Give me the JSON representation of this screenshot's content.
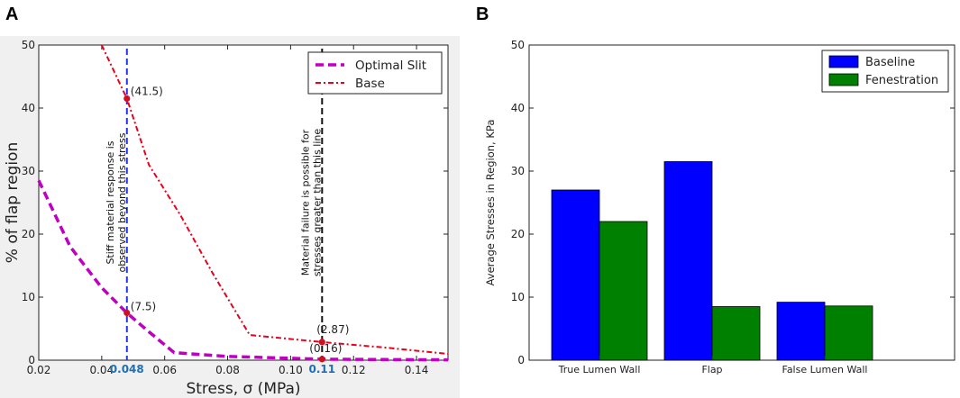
{
  "panel_a_label": "A",
  "panel_b_label": "B",
  "chart_data": [
    {
      "type": "line",
      "panel": "A",
      "xlabel": "Stress, σ (MPa)",
      "ylabel": "% of flap region",
      "xlim": [
        0.02,
        0.15
      ],
      "ylim": [
        0,
        50
      ],
      "xticks": [
        "0.02",
        "0.04",
        "0.06",
        "0.08",
        "0.10",
        "0.12",
        "0.14"
      ],
      "xtick_values": [
        0.02,
        0.04,
        0.06,
        0.08,
        0.1,
        0.12,
        0.14
      ],
      "yticks": [
        "0",
        "10",
        "20",
        "30",
        "40",
        "50"
      ],
      "ytick_values": [
        0,
        10,
        20,
        30,
        40,
        50
      ],
      "series": [
        {
          "name": "Optimal Slit",
          "color": "#c000c0",
          "x": [
            0.02,
            0.03,
            0.04,
            0.048,
            0.055,
            0.063,
            0.08,
            0.11,
            0.13,
            0.15
          ],
          "y": [
            28.5,
            18,
            11.5,
            7.5,
            4.5,
            1.2,
            0.6,
            0.16,
            0.1,
            0.05
          ]
        },
        {
          "name": "Base",
          "color": "#e8001c",
          "x": [
            0.04,
            0.048,
            0.055,
            0.065,
            0.075,
            0.087,
            0.11,
            0.13,
            0.15
          ],
          "y": [
            50,
            41.5,
            31,
            23,
            14,
            4,
            2.87,
            2,
            1
          ]
        }
      ],
      "vlines": [
        {
          "x": 0.048,
          "color": "#2233ee",
          "label": "0.048",
          "text": [
            "Stiff material response is",
            "observed beyond this stress"
          ]
        },
        {
          "x": 0.11,
          "color": "#111111",
          "label": "0.11",
          "text": [
            "Material failure is possible for",
            "stresses greater than this line"
          ]
        }
      ],
      "points": [
        {
          "x": 0.048,
          "y": 41.5,
          "label": "(41.5)"
        },
        {
          "x": 0.048,
          "y": 7.5,
          "label": "(7.5)"
        },
        {
          "x": 0.11,
          "y": 2.87,
          "label": "(2.87)"
        },
        {
          "x": 0.11,
          "y": 0.16,
          "label": "(0.16)"
        }
      ],
      "legend_position": "top-right"
    },
    {
      "type": "bar",
      "panel": "B",
      "categories": [
        "True Lumen Wall",
        "Flap",
        "False Lumen Wall"
      ],
      "series": [
        {
          "name": "Baseline",
          "color": "#0000ff",
          "values": [
            27,
            31.5,
            9.2
          ]
        },
        {
          "name": "Fenestration",
          "color": "#008000",
          "values": [
            22,
            8.5,
            8.6
          ]
        }
      ],
      "xlabel": "",
      "ylabel": "Average Stresses in Region, KPa",
      "ylim": [
        0,
        50
      ],
      "yticks": [
        "0",
        "10",
        "20",
        "30",
        "40",
        "50"
      ],
      "ytick_values": [
        0,
        10,
        20,
        30,
        40,
        50
      ],
      "legend_position": "top-right"
    }
  ]
}
